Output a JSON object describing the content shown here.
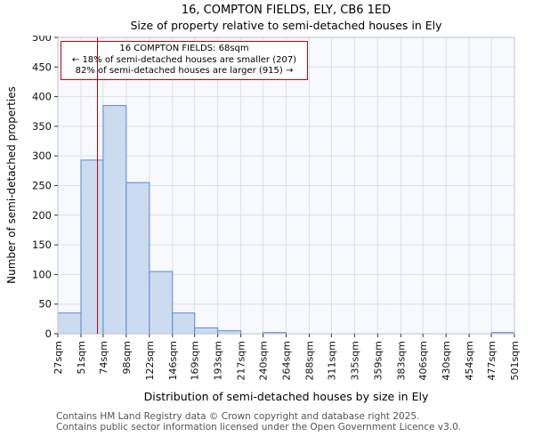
{
  "title": "16, COMPTON FIELDS, ELY, CB6 1ED",
  "subtitle": "Size of property relative to semi-detached houses in Ely",
  "annotation": {
    "line1": "16 COMPTON FIELDS: 68sqm",
    "line2": "← 18% of semi-detached houses are smaller (207)",
    "line3": "82% of semi-detached houses are larger (915) →"
  },
  "footer": {
    "line1": "Contains HM Land Registry data © Crown copyright and database right 2025.",
    "line2": "Contains public sector information licensed under the Open Government Licence v3.0."
  },
  "chart_data": {
    "type": "bar",
    "title": "16, COMPTON FIELDS, ELY, CB6 1ED",
    "subtitle": "Size of property relative to semi-detached houses in Ely",
    "xlabel": "Distribution of semi-detached houses by size in Ely",
    "ylabel": "Number of semi-detached properties",
    "bin_edges_sqm": [
      27,
      51,
      74,
      98,
      122,
      146,
      169,
      193,
      217,
      240,
      264,
      288,
      311,
      335,
      359,
      383,
      406,
      430,
      454,
      477,
      501
    ],
    "bin_labels": [
      "27sqm",
      "51sqm",
      "74sqm",
      "98sqm",
      "122sqm",
      "146sqm",
      "169sqm",
      "193sqm",
      "217sqm",
      "240sqm",
      "264sqm",
      "288sqm",
      "311sqm",
      "335sqm",
      "359sqm",
      "383sqm",
      "406sqm",
      "430sqm",
      "454sqm",
      "477sqm",
      "501sqm"
    ],
    "values": [
      35,
      293,
      385,
      255,
      105,
      35,
      10,
      5,
      0,
      2,
      0,
      0,
      0,
      0,
      0,
      0,
      0,
      0,
      0,
      2
    ],
    "ylim": [
      0,
      500
    ],
    "ytick_step": 50,
    "marker_value_sqm": 68,
    "marker_color": "#bb0000",
    "bar_fill": "#cbdcf1",
    "bar_stroke": "#5f87c7",
    "grid_color": "#d9e0ef",
    "plot_bg": "#f8f9fc",
    "grid": true,
    "legend": "none"
  }
}
